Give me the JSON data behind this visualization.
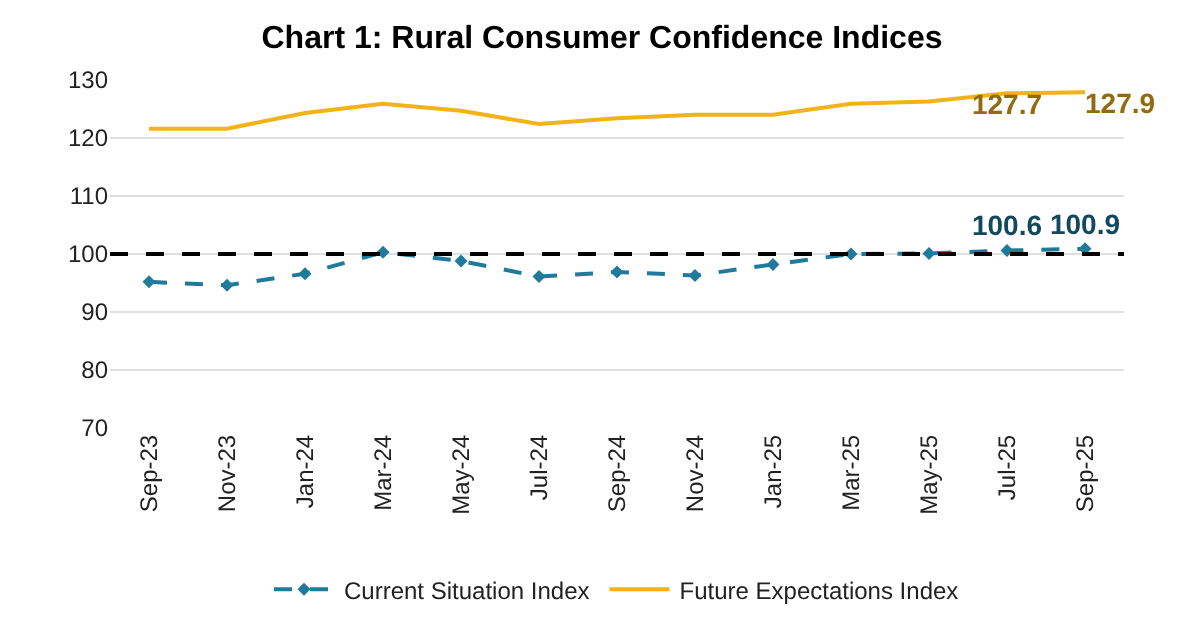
{
  "chart_data": {
    "type": "line",
    "title": "Chart 1: Rural Consumer Confidence Indices",
    "categories": [
      "Sep-23",
      "Nov-23",
      "Jan-24",
      "Mar-24",
      "May-24",
      "Jul-24",
      "Sep-24",
      "Nov-24",
      "Jan-25",
      "Mar-25",
      "May-25",
      "Jul-25",
      "Sep-25"
    ],
    "series": [
      {
        "name": "Current Situation Index",
        "color": "#1f7a9c",
        "line_style": "dashed",
        "marker": "diamond",
        "values": [
          95.2,
          94.6,
          96.6,
          100.3,
          98.8,
          96.1,
          96.9,
          96.3,
          98.2,
          100.0,
          100.1,
          100.6,
          100.9
        ],
        "value_labels": [
          null,
          null,
          null,
          null,
          null,
          null,
          null,
          null,
          null,
          null,
          null,
          "100.6",
          "100.9"
        ]
      },
      {
        "name": "Future Expectations Index",
        "color": "#f2b318",
        "line_style": "solid",
        "marker": "none",
        "values": [
          121.6,
          121.6,
          124.3,
          125.9,
          124.7,
          122.4,
          123.4,
          124.0,
          124.0,
          125.9,
          126.3,
          127.7,
          127.9
        ],
        "value_labels": [
          null,
          null,
          null,
          null,
          null,
          null,
          null,
          null,
          null,
          null,
          null,
          "127.7",
          "127.9"
        ]
      }
    ],
    "ylim": [
      70,
      130
    ],
    "yticks": [
      70,
      80,
      90,
      100,
      110,
      120,
      130
    ],
    "ref_lines": [
      {
        "axis": "y",
        "value": 100,
        "color": "#000000",
        "line_style": "dashed"
      }
    ],
    "grid": "y",
    "legend": "bottom"
  }
}
